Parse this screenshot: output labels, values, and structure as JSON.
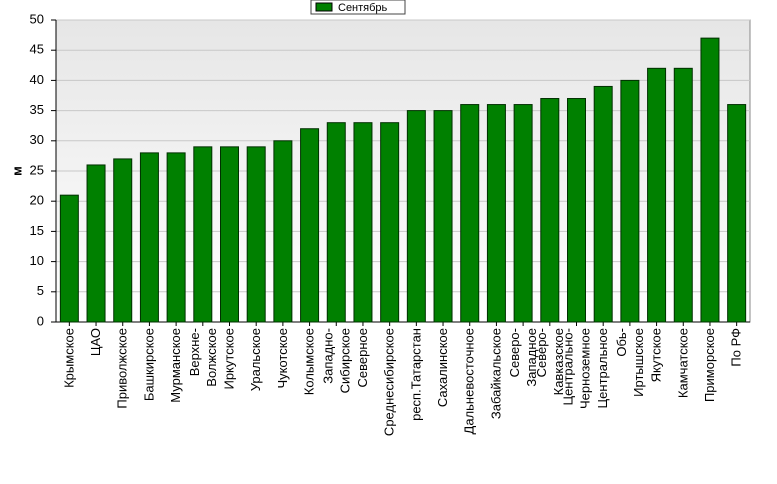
{
  "chart_data": {
    "type": "bar",
    "y_label": "м",
    "categories": [
      "Крымское",
      "ЦАО",
      "Приволжское",
      "Башкирское",
      "Мурманское",
      "Верхне-\nВолжское",
      "Иркутское",
      "Уральское",
      "Чукотское",
      "Колымское",
      "Западно-\nСибирское",
      "Северное",
      "Среднесибирское",
      "респ.Татарстан",
      "Сахалинское",
      "Дальневосточное",
      "Забайкальское",
      "Северо-\nЗападное",
      "Северо-\nКавказское",
      "Центрально-\nЧерноземное",
      "Центральное",
      "Обь-\nИртышское",
      "Якутское",
      "Камчатское",
      "Приморское",
      "По РФ"
    ],
    "series": [
      {
        "name": "Сентябрь",
        "color": "#008000",
        "values": [
          21,
          26,
          27,
          28,
          28,
          29,
          29,
          29,
          30,
          32,
          33,
          33,
          33,
          35,
          35,
          36,
          36,
          36,
          37,
          37,
          39,
          40,
          42,
          42,
          47,
          36
        ]
      }
    ],
    "ylim": [
      0,
      50
    ],
    "yticks": [
      0,
      5,
      10,
      15,
      20,
      25,
      30,
      35,
      40,
      45,
      50
    ],
    "grid": true
  }
}
